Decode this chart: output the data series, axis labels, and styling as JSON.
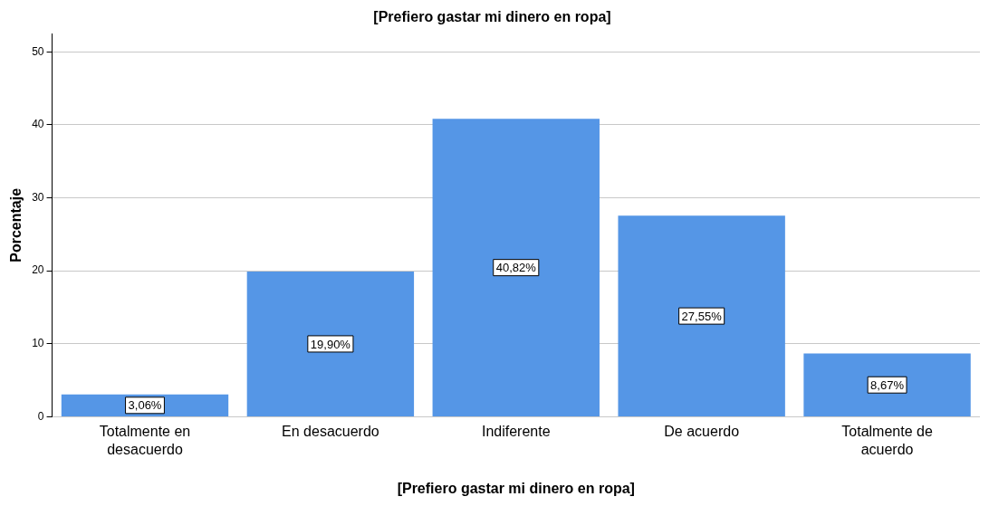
{
  "chart_data": {
    "type": "bar",
    "title": "[Prefiero gastar mi dinero en ropa]",
    "xlabel": "[Prefiero gastar mi dinero en ropa]",
    "ylabel": "Porcentaje",
    "categories": [
      "Totalmente en desacuerdo",
      "En desacuerdo",
      "Indiferente",
      "De acuerdo",
      "Totalmente de acuerdo"
    ],
    "values": [
      3.06,
      19.9,
      40.82,
      27.55,
      8.67
    ],
    "value_labels": [
      "3,06%",
      "19,90%",
      "40,82%",
      "27,55%",
      "8,67%"
    ],
    "color": "#5596e6",
    "ylim": [
      0,
      52.5
    ],
    "yticks": [
      0,
      10,
      20,
      30,
      40,
      50
    ],
    "grid": "y",
    "legend": false
  }
}
